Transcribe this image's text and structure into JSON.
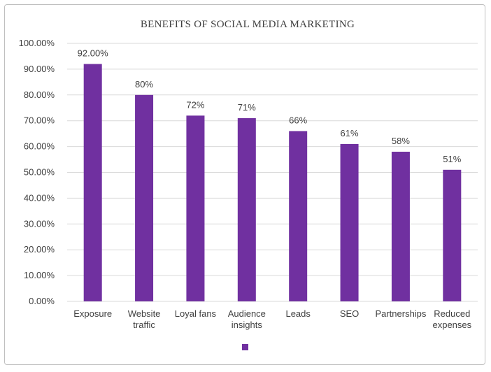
{
  "chart_data": {
    "type": "bar",
    "title": "BENEFITS OF SOCIAL MEDIA MARKETING",
    "categories": [
      "Exposure",
      "Website traffic",
      "Loyal fans",
      "Audience insights",
      "Leads",
      "SEO",
      "Partnerships",
      "Reduced expenses"
    ],
    "category_lines": [
      [
        "Exposure"
      ],
      [
        "Website",
        "traffic"
      ],
      [
        "Loyal fans"
      ],
      [
        "Audience",
        "insights"
      ],
      [
        "Leads"
      ],
      [
        "SEO"
      ],
      [
        "Partnerships"
      ],
      [
        "Reduced",
        "expenses"
      ]
    ],
    "values": [
      92,
      80,
      72,
      71,
      66,
      61,
      58,
      51
    ],
    "data_labels": [
      "92.00%",
      "80%",
      "72%",
      "71%",
      "66%",
      "61%",
      "58%",
      "51%"
    ],
    "y_ticks": [
      "0.00%",
      "10.00%",
      "20.00%",
      "30.00%",
      "40.00%",
      "50.00%",
      "60.00%",
      "70.00%",
      "80.00%",
      "90.00%",
      "100.00%"
    ],
    "ylim": [
      0,
      100
    ],
    "xlabel": "",
    "ylabel": "",
    "grid": true,
    "legend_position": "bottom",
    "bar_color": "#7030a0"
  }
}
